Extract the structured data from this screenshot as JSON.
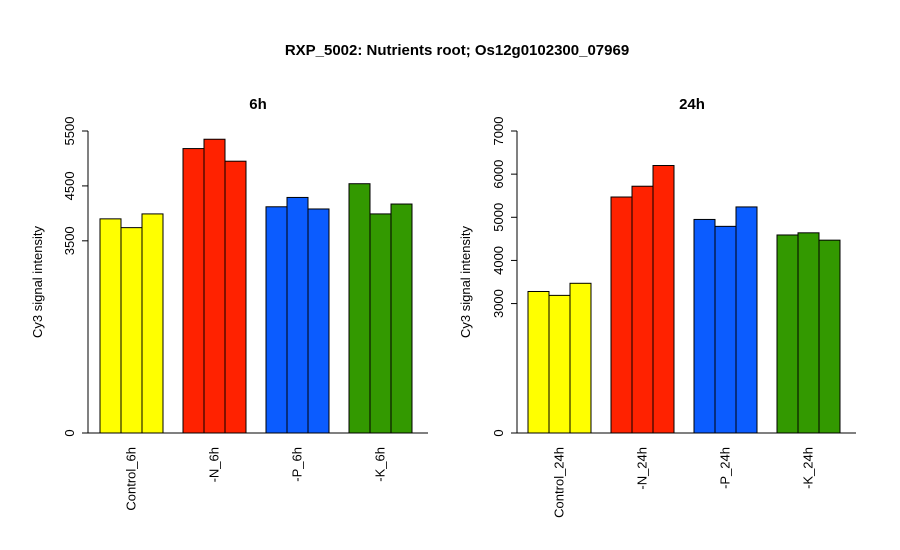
{
  "title": "RXP_5002: Nutrients root; Os12g0102300_07969",
  "chart_data": [
    {
      "type": "bar",
      "title": "6h",
      "ylabel": "Cy3 signal intensity",
      "ylim": [
        0,
        5500
      ],
      "yticks": [
        0,
        3500,
        4500,
        5500
      ],
      "categories": [
        "Control_6h",
        "-N_6h",
        "-P_6h",
        "-K_6h"
      ],
      "groups": [
        {
          "category": "Control_6h",
          "color": "#ffff00",
          "values": [
            3900,
            3740,
            3990
          ]
        },
        {
          "category": "-N_6h",
          "color": "#ff2200",
          "values": [
            5180,
            5350,
            4950
          ]
        },
        {
          "category": "-P_6h",
          "color": "#0b5cff",
          "values": [
            4120,
            4290,
            4080
          ]
        },
        {
          "category": "-K_6h",
          "color": "#339900",
          "values": [
            4540,
            3990,
            4170
          ]
        }
      ],
      "grid": false
    },
    {
      "type": "bar",
      "title": "24h",
      "ylabel": "Cy3 signal intensity",
      "ylim": [
        0,
        7000
      ],
      "yticks": [
        0,
        3000,
        4000,
        5000,
        6000,
        7000
      ],
      "categories": [
        "Control_24h",
        "-N_24h",
        "-P_24h",
        "-K_24h"
      ],
      "groups": [
        {
          "category": "Control_24h",
          "color": "#ffff00",
          "values": [
            3280,
            3190,
            3470
          ]
        },
        {
          "category": "-N_24h",
          "color": "#ff2200",
          "values": [
            5470,
            5720,
            6200
          ]
        },
        {
          "category": "-P_24h",
          "color": "#0b5cff",
          "values": [
            4950,
            4790,
            5240
          ]
        },
        {
          "category": "-K_24h",
          "color": "#339900",
          "values": [
            4590,
            4640,
            4470
          ]
        }
      ],
      "grid": false
    }
  ]
}
